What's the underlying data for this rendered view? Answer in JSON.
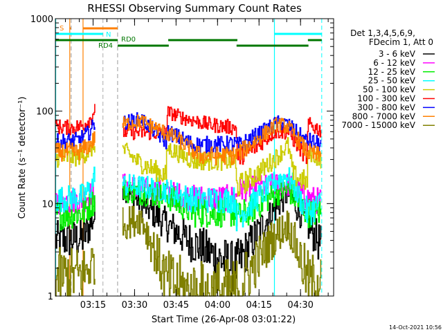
{
  "chart_data": {
    "type": "line",
    "title": "RHESSI Observing Summary Count Rates",
    "xlabel": "Start Time (26-Apr-08 03:01:22)",
    "ylabel": "Count Rate (s⁻¹ detector⁻¹)",
    "x_units": "minutes since 03:01:22",
    "xlim": [
      0,
      100.6
    ],
    "ylim": [
      1,
      1000
    ],
    "yscale": "log",
    "yticks": [
      {
        "value": 1,
        "label": "1"
      },
      {
        "value": 10,
        "label": "10"
      },
      {
        "value": 100,
        "label": "100"
      },
      {
        "value": 1000,
        "label": "1000"
      }
    ],
    "xticks": [
      {
        "value": 13.63,
        "label": "03:15"
      },
      {
        "value": 28.63,
        "label": "03:30"
      },
      {
        "value": 43.63,
        "label": "03:45"
      },
      {
        "value": 58.63,
        "label": "04:00"
      },
      {
        "value": 73.63,
        "label": "04:15"
      },
      {
        "value": 88.63,
        "label": "04:30"
      }
    ],
    "legend_header": [
      "Det 1,3,4,5,6,9,",
      "FDecim 1, Att 0"
    ],
    "legend_placement": "right",
    "series": [
      {
        "name": "3 - 6 keV",
        "color": "#000000",
        "segments": [
          [
            [
              0,
              4
            ],
            [
              10,
              4.2
            ],
            [
              14.3,
              7.5
            ]
          ],
          [
            [
              24.2,
              15
            ],
            [
              40,
              6
            ],
            [
              48,
              4
            ],
            [
              65,
              2
            ],
            [
              75,
              6
            ],
            [
              84,
              13
            ],
            [
              96,
              3.5
            ]
          ]
        ]
      },
      {
        "name": "6 - 12 keV",
        "color": "#ff00ff",
        "segments": [
          [
            [
              0,
              10.5
            ],
            [
              10,
              11
            ],
            [
              14.3,
              14
            ]
          ],
          [
            [
              24.2,
              16
            ],
            [
              40,
              13
            ],
            [
              50,
              11.5
            ],
            [
              65,
              11.5
            ],
            [
              66,
              14
            ],
            [
              80,
              16
            ],
            [
              84,
              16
            ],
            [
              91,
              11.5
            ],
            [
              96,
              10.5
            ]
          ]
        ]
      },
      {
        "name": "12 - 25 keV",
        "color": "#00ee00",
        "segments": [
          [
            [
              0,
              7.5
            ],
            [
              10,
              8
            ],
            [
              14.3,
              11
            ]
          ],
          [
            [
              24.2,
              14
            ],
            [
              40,
              12
            ],
            [
              50,
              8
            ],
            [
              65,
              8
            ],
            [
              66,
              7
            ],
            [
              80,
              13
            ],
            [
              84,
              14
            ],
            [
              91,
              8
            ],
            [
              96,
              8
            ]
          ]
        ]
      },
      {
        "name": "25 - 50 keV",
        "color": "#00ffff",
        "segments": [
          [
            [
              0,
              11
            ],
            [
              10,
              12
            ],
            [
              13,
              15
            ],
            [
              14.3,
              22
            ]
          ],
          [
            [
              24.2,
              16
            ],
            [
              40,
              14
            ],
            [
              50,
              11
            ],
            [
              65,
              11
            ],
            [
              65.5,
              7
            ],
            [
              80,
              18
            ],
            [
              84,
              20
            ],
            [
              91,
              8
            ],
            [
              96,
              10
            ]
          ]
        ]
      },
      {
        "name": "50 - 100 keV",
        "color": "#cccc00",
        "segments": [
          [
            [
              0,
              31
            ],
            [
              8,
              32
            ],
            [
              12,
              36
            ],
            [
              14.3,
              43
            ]
          ],
          [
            [
              24.2,
              39
            ],
            [
              30,
              28
            ],
            [
              40,
              20
            ],
            [
              40.3,
              40
            ],
            [
              50,
              29
            ],
            [
              65,
              29
            ],
            [
              65.5,
              15
            ],
            [
              72,
              20
            ],
            [
              80,
              32
            ],
            [
              84,
              43
            ],
            [
              86,
              20
            ],
            [
              91,
              17
            ],
            [
              91.3,
              37
            ],
            [
              96,
              30
            ]
          ]
        ]
      },
      {
        "name": "100 - 300 keV",
        "color": "#ff0000",
        "segments": [
          [
            [
              0,
              68
            ],
            [
              6,
              66
            ],
            [
              10,
              70
            ],
            [
              13,
              85
            ],
            [
              14.3,
              110
            ]
          ],
          [
            [
              24.2,
              60
            ],
            [
              40,
              58
            ],
            [
              40.5,
              98
            ],
            [
              46,
              85
            ],
            [
              55,
              72
            ],
            [
              65,
              66
            ],
            [
              65.2,
              75
            ],
            [
              65.8,
              31
            ],
            [
              72,
              40
            ],
            [
              79,
              60
            ],
            [
              84,
              60
            ],
            [
              91,
              31
            ],
            [
              91.3,
              72
            ],
            [
              96,
              62
            ]
          ]
        ]
      },
      {
        "name": "300 - 800 keV",
        "color": "#0000ff",
        "segments": [
          [
            [
              0,
              46
            ],
            [
              8,
              48
            ],
            [
              12,
              58
            ],
            [
              14.3,
              75
            ]
          ],
          [
            [
              24.2,
              75
            ],
            [
              31,
              82
            ],
            [
              40,
              47
            ],
            [
              40.5,
              60
            ],
            [
              50,
              43
            ],
            [
              65,
              44
            ],
            [
              66,
              42
            ],
            [
              75,
              60
            ],
            [
              80,
              75
            ],
            [
              84,
              72
            ],
            [
              91,
              46
            ],
            [
              91.3,
              48
            ],
            [
              96,
              43
            ]
          ]
        ]
      },
      {
        "name": "800 - 7000 keV",
        "color": "#ff8000",
        "segments": [
          [
            [
              0,
              36
            ],
            [
              8,
              36
            ],
            [
              12,
              42
            ],
            [
              14.3,
              52
            ]
          ],
          [
            [
              24.2,
              72
            ],
            [
              31,
              78
            ],
            [
              40,
              58
            ],
            [
              44,
              50
            ],
            [
              52,
              33
            ],
            [
              65,
              33
            ],
            [
              70,
              42
            ],
            [
              80,
              72
            ],
            [
              84,
              68
            ],
            [
              91,
              36
            ],
            [
              96,
              32
            ]
          ]
        ]
      },
      {
        "name": "7000 - 15000 keV",
        "color": "#808000",
        "segments": [
          [
            [
              0,
              1.6
            ],
            [
              10,
              1.7
            ],
            [
              14.3,
              2.5
            ]
          ],
          [
            [
              24.2,
              6
            ],
            [
              31,
              7
            ],
            [
              40,
              1.5
            ],
            [
              50,
              1
            ],
            [
              65,
              1.1
            ],
            [
              78,
              4
            ],
            [
              84,
              6
            ],
            [
              92,
              1.3
            ],
            [
              96,
              1.6
            ]
          ]
        ]
      }
    ],
    "annotations": {
      "flags": [
        {
          "label": "S",
          "color": "#ff8000",
          "level": 1,
          "intervals": [
            [
              5.2,
              5.6
            ],
            [
              10,
              22.5
            ]
          ]
        },
        {
          "label": "N",
          "color": "#00ffff",
          "level": 2,
          "intervals": [
            [
              0,
              17.2
            ],
            [
              79.2,
              96.3
            ]
          ]
        },
        {
          "label": "RD0",
          "color": "#007700",
          "level": 3,
          "intervals": [
            [
              0,
              22.5
            ],
            [
              40.8,
              65.8
            ],
            [
              91.3,
              96.3
            ]
          ]
        },
        {
          "label": "RD4",
          "color": "#007700",
          "level": 4,
          "intervals": [
            [
              22.5,
              41
            ],
            [
              65.5,
              91.5
            ]
          ]
        }
      ],
      "vlines": [
        {
          "t": 0,
          "color": "#00ffff",
          "style": "solid"
        },
        {
          "t": 5.2,
          "color": "#ff8000",
          "style": "solid"
        },
        {
          "t": 5.7,
          "color": "#999999",
          "style": "dashed"
        },
        {
          "t": 10,
          "color": "#ff8000",
          "style": "solid"
        },
        {
          "t": 17.2,
          "color": "#aaaaaa",
          "style": "dashed"
        },
        {
          "t": 22.5,
          "color": "#999999",
          "style": "dashed"
        },
        {
          "t": 79.2,
          "color": "#00ffff",
          "style": "solid"
        },
        {
          "t": 96.3,
          "color": "#00ffff",
          "style": "dashed"
        }
      ]
    }
  },
  "footer": {
    "timestamp": "14-Oct-2021 10:56"
  }
}
